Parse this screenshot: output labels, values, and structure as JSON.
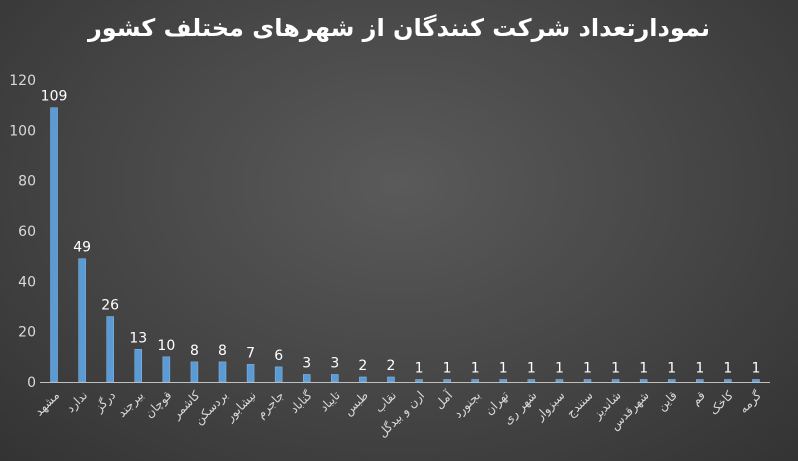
{
  "chart_data": {
    "type": "bar",
    "title": "نمودارتعداد شرکت کنندگان از شهرهای مختلف کشور",
    "xlabel": "",
    "ylabel": "",
    "ylim": [
      0,
      120
    ],
    "yticks": [
      0,
      20,
      40,
      60,
      80,
      100,
      120
    ],
    "grid": false,
    "legend": "none",
    "categories": [
      "مشهد",
      "ندارد",
      "درگز",
      "بیرجند",
      "قوچان",
      "کاشمر",
      "بردسکن",
      "نیشابور",
      "جاجرم",
      "گناباد",
      "تایباد",
      "طبس",
      "نقاب",
      "ارن و بیدگل",
      "آمل",
      "بجنورد",
      "تهران",
      "شهر ری",
      "سبزوار",
      "سنندج",
      "شاندیز",
      "شهرقدس",
      "قاین",
      "قم",
      "کاخک",
      "گرمه"
    ],
    "values": [
      109,
      49,
      26,
      13,
      10,
      8,
      8,
      7,
      6,
      3,
      3,
      2,
      2,
      1,
      1,
      1,
      1,
      1,
      1,
      1,
      1,
      1,
      1,
      1,
      1,
      1
    ],
    "colors": {
      "bar": "#5b9bd5",
      "bar_edge": "#8fbce6",
      "text": "#ffffff",
      "tick_text": "#d9d9d9",
      "axis": "#bfbfbf"
    }
  }
}
